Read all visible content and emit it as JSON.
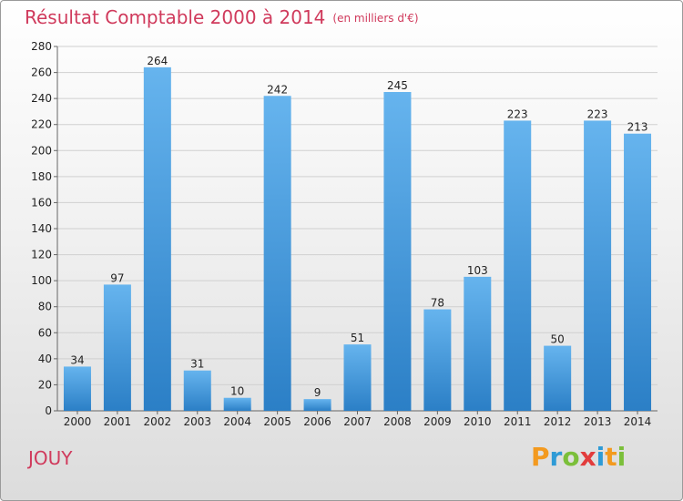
{
  "title": "Résultat Comptable 2000 à 2014",
  "subtitle": "(en milliers d'€)",
  "city": "JOUY",
  "logo": {
    "letters": [
      "P",
      "r",
      "o",
      "x",
      "i",
      "t",
      "i"
    ],
    "colors": [
      "#f39a1f",
      "#2e9bd6",
      "#7bbf3a",
      "#e23c3c",
      "#2e9bd6",
      "#f39a1f",
      "#7bbf3a"
    ]
  },
  "colors": {
    "bar_top": "#66b4ee",
    "bar_bottom": "#2b7fc6",
    "grid": "#d0d0d0",
    "accent": "#d03a5c"
  },
  "chart_data": {
    "type": "bar",
    "categories": [
      "2000",
      "2001",
      "2002",
      "2003",
      "2004",
      "2005",
      "2006",
      "2007",
      "2008",
      "2009",
      "2010",
      "2011",
      "2012",
      "2013",
      "2014"
    ],
    "values": [
      34,
      97,
      264,
      31,
      10,
      242,
      9,
      51,
      245,
      78,
      103,
      223,
      50,
      223,
      213
    ],
    "yticks": [
      0,
      20,
      40,
      60,
      80,
      100,
      120,
      140,
      160,
      180,
      200,
      220,
      240,
      260,
      280
    ],
    "ylim": [
      0,
      280
    ],
    "grid": true,
    "xlabel": "",
    "ylabel": ""
  }
}
